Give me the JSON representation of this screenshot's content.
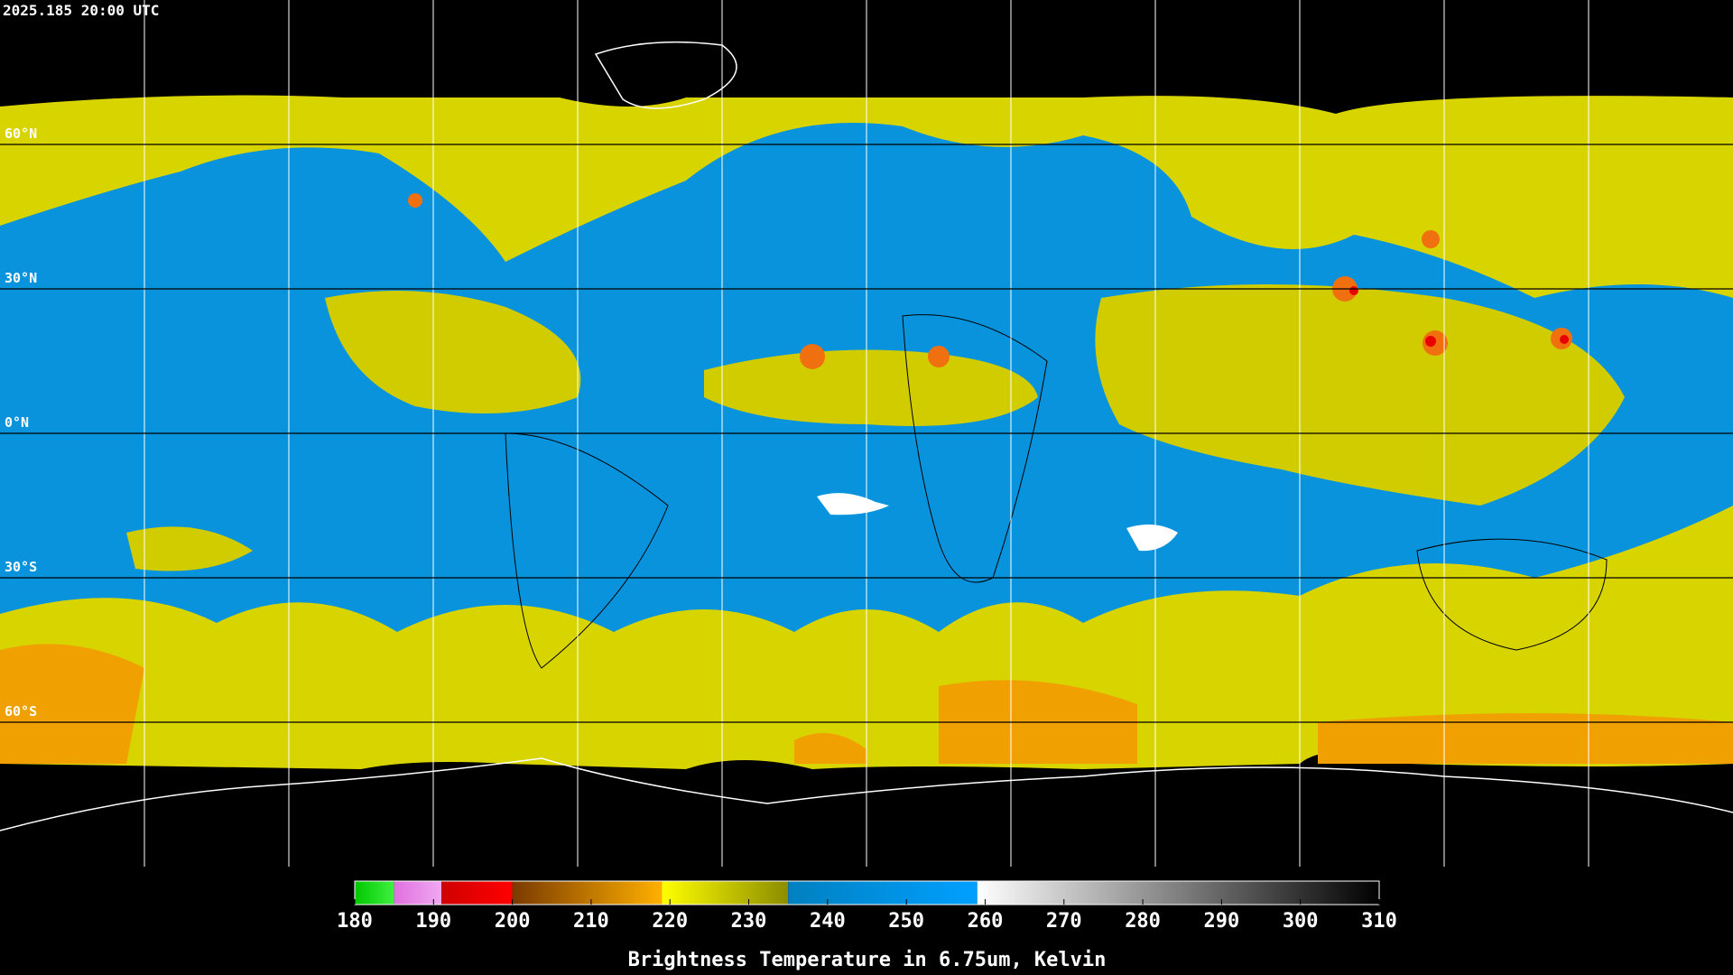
{
  "header": {
    "timestamp": "2025.185 20:00 UTC"
  },
  "map": {
    "latitude_lines": [
      {
        "value": 60,
        "label": "60°N"
      },
      {
        "value": 30,
        "label": "30°N"
      },
      {
        "value": 0,
        "label": "0°N"
      },
      {
        "value": -30,
        "label": "30°S"
      },
      {
        "value": -60,
        "label": "60°S"
      }
    ]
  },
  "colorbar": {
    "range": [
      180,
      310
    ],
    "ticks": [
      180,
      190,
      200,
      210,
      220,
      230,
      240,
      250,
      260,
      270,
      280,
      290,
      300,
      310
    ],
    "label": "Brightness Temperature in 6.75um, Kelvin",
    "segments": [
      {
        "start": 180,
        "end": 185,
        "color_start": "#00c800",
        "color_end": "#40f040"
      },
      {
        "start": 185,
        "end": 191,
        "color_start": "#e070e0",
        "color_end": "#f0a8f0"
      },
      {
        "start": 191,
        "end": 200,
        "color_start": "#d00000",
        "color_end": "#ff0000"
      },
      {
        "start": 200,
        "end": 219,
        "color_start": "#7a3a00",
        "color_end": "#ffb000"
      },
      {
        "start": 219,
        "end": 235,
        "color_start": "#ffff00",
        "color_end": "#8c8c00"
      },
      {
        "start": 235,
        "end": 259,
        "color_start": "#0080c0",
        "color_end": "#00a0ff"
      },
      {
        "start": 259,
        "end": 310,
        "color_start": "#ffffff",
        "color_end": "#000000"
      }
    ]
  }
}
